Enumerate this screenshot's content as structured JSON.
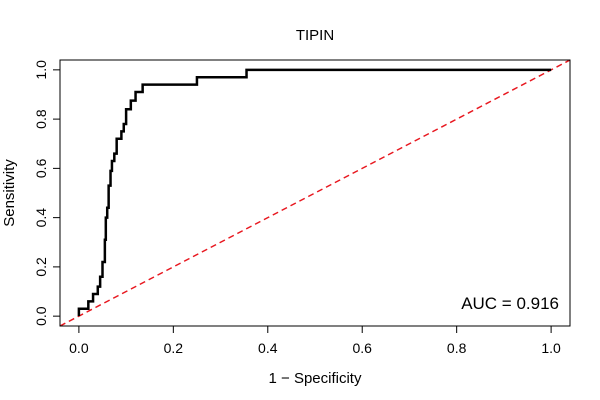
{
  "chart_data": {
    "type": "line",
    "title": "TIPIN",
    "xlabel": "1 − Specificity",
    "ylabel": "Sensitivity",
    "xlim": [
      -0.04,
      1.04
    ],
    "ylim": [
      -0.04,
      1.04
    ],
    "xticks": [
      0.0,
      0.2,
      0.4,
      0.6,
      0.8,
      1.0
    ],
    "xtick_labels": [
      "0.0",
      "0.2",
      "0.4",
      "0.6",
      "0.8",
      "1.0"
    ],
    "yticks": [
      0.0,
      0.2,
      0.4,
      0.6,
      0.8,
      1.0
    ],
    "ytick_labels": [
      "0.0",
      "0.2",
      "0.4",
      "0.6",
      "0.8",
      "1.0"
    ],
    "grid": false,
    "annotation": "AUC = 0.916",
    "diagonal_color": "#e8171f",
    "series": [
      {
        "color": "#000000",
        "x": [
          0.0,
          0.0,
          0.02,
          0.02,
          0.03,
          0.03,
          0.04,
          0.04,
          0.045,
          0.045,
          0.05,
          0.05,
          0.055,
          0.055,
          0.057,
          0.057,
          0.06,
          0.06,
          0.063,
          0.063,
          0.067,
          0.067,
          0.07,
          0.07,
          0.075,
          0.075,
          0.08,
          0.08,
          0.09,
          0.09,
          0.095,
          0.095,
          0.1,
          0.1,
          0.11,
          0.11,
          0.12,
          0.12,
          0.135,
          0.135,
          0.25,
          0.25,
          0.355,
          0.355,
          1.0
        ],
        "y": [
          0.0,
          0.03,
          0.03,
          0.06,
          0.06,
          0.09,
          0.09,
          0.12,
          0.12,
          0.16,
          0.16,
          0.22,
          0.22,
          0.31,
          0.31,
          0.4,
          0.4,
          0.44,
          0.44,
          0.53,
          0.53,
          0.59,
          0.59,
          0.63,
          0.63,
          0.66,
          0.66,
          0.72,
          0.72,
          0.75,
          0.75,
          0.78,
          0.78,
          0.84,
          0.84,
          0.875,
          0.875,
          0.91,
          0.91,
          0.94,
          0.94,
          0.97,
          0.97,
          1.0,
          1.0
        ]
      }
    ],
    "diagonal": {
      "x": [
        0,
        1
      ],
      "y": [
        0,
        1
      ]
    }
  }
}
